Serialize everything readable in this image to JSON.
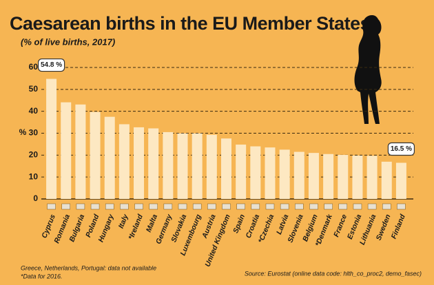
{
  "chart_data": {
    "type": "bar",
    "title": "Caesarean births in the EU  Member States",
    "subtitle": "(% of live births, 2017)",
    "y_label": "%",
    "categories": [
      "Cyprus",
      "Romania",
      "Bulgaria",
      "Poland",
      "Hungary",
      "Italy",
      "*Ireland",
      "Malta",
      "Germany",
      "Slovakia",
      "Luxembourg",
      "Austria",
      "United Kingdom",
      "Spain",
      "Croatia",
      "*Czechia",
      "Latvia",
      "Slovenia",
      "Belgium",
      "*Denmark",
      "France",
      "Estonia",
      "Lithuania",
      "Sweden",
      "Finland"
    ],
    "values": [
      54.8,
      44.1,
      43.1,
      39.7,
      37.5,
      34.1,
      32.7,
      32.2,
      30.5,
      29.9,
      29.9,
      29.3,
      27.6,
      24.8,
      24.0,
      23.5,
      22.5,
      21.5,
      21.0,
      20.5,
      20.1,
      19.8,
      19.7,
      17.0,
      16.5
    ],
    "value_labels": [
      "54.8 %",
      null,
      null,
      null,
      null,
      null,
      null,
      null,
      null,
      null,
      null,
      null,
      null,
      null,
      null,
      null,
      null,
      null,
      null,
      null,
      null,
      null,
      null,
      null,
      "16.5 %"
    ],
    "color": "#fde8c2",
    "ylim": [
      0,
      60
    ],
    "yticks": [
      0,
      10,
      20,
      30,
      40,
      50,
      60
    ],
    "grid": true,
    "notes": [
      "Greece, Netherlands, Portugal: data not available",
      "*Data for 2016."
    ],
    "source": "Source: Eurostat (online data code: hlth_co_proc2, demo_fasec)"
  }
}
